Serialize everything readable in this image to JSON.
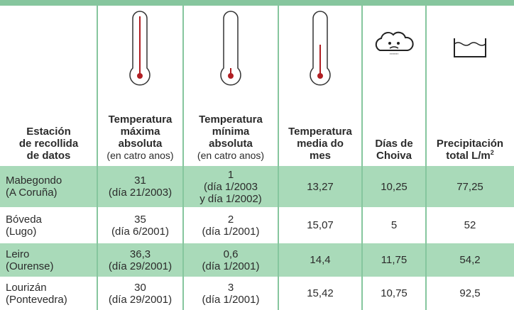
{
  "header": {
    "columns": [
      {
        "lines": [
          "Estación",
          "de recollida",
          "de datos"
        ]
      },
      {
        "lines": [
          "Temperatura",
          "máxima",
          "absoluta"
        ],
        "note": "(en catro anos)"
      },
      {
        "lines": [
          "Temperatura",
          "mínima",
          "absoluta"
        ],
        "note": "(en catro anos)"
      },
      {
        "lines": [
          "Temperatura",
          "media do",
          "mes"
        ]
      },
      {
        "lines": [
          "Días de",
          "Choiva"
        ]
      },
      {
        "lines": [
          "Precipitación",
          "total L/m"
        ],
        "sup": "2"
      }
    ]
  },
  "table": {
    "rows": [
      [
        [
          "Mabegondo",
          "(A Coruña)"
        ],
        [
          "31",
          "(día 21/2003)"
        ],
        [
          "1",
          "(día 1/2003",
          "y día 1/2002)"
        ],
        [
          "13,27"
        ],
        [
          "10,25"
        ],
        [
          "77,25"
        ]
      ],
      [
        [
          "Bóveda",
          "(Lugo)"
        ],
        [
          "35",
          "(día 6/2001)"
        ],
        [
          "2",
          "(día 1/2001)"
        ],
        [
          "15,07"
        ],
        [
          "5"
        ],
        [
          "52"
        ]
      ],
      [
        [
          "Leiro",
          "(Ourense)"
        ],
        [
          "36,3",
          "(día 29/2001)"
        ],
        [
          "0,6",
          "(día 1/2001)"
        ],
        [
          "14,4"
        ],
        [
          "11,75"
        ],
        [
          "54,2"
        ]
      ],
      [
        [
          "Lourizán",
          "(Pontevedra)"
        ],
        [
          "30",
          "(día 29/2001)"
        ],
        [
          "3",
          "(día 1/2001)"
        ],
        [
          "15,42"
        ],
        [
          "10,75"
        ],
        [
          "92,5"
        ]
      ]
    ]
  }
}
